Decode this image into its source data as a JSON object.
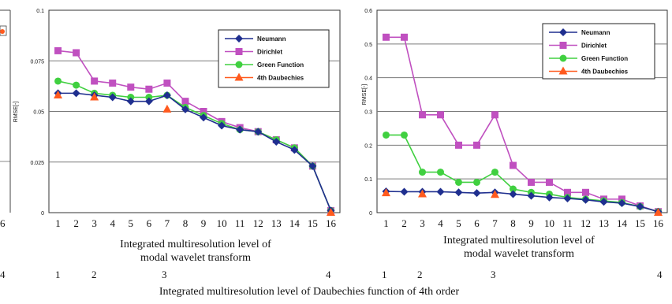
{
  "chart_data": [
    {
      "type": "line",
      "ylabel": "RMSE[-]",
      "ylim": [
        0,
        0.1
      ],
      "yticks": [
        "0",
        "0.025",
        "0.05",
        "0.075",
        "0.1"
      ],
      "xticks": [
        "1",
        "2",
        "3",
        "4",
        "5",
        "6",
        "7",
        "8",
        "9",
        "10",
        "11",
        "12",
        "13",
        "14",
        "15",
        "16"
      ],
      "xlabel_lines": [
        "Integrated multiresolution level of",
        "modal wavelet transform"
      ],
      "legend": "top-right",
      "grid": "horizontal",
      "series": [
        {
          "name": "Neumann",
          "color": "#1f2f8f",
          "marker": "diamond",
          "x": [
            1,
            2,
            3,
            4,
            5,
            6,
            7,
            8,
            9,
            10,
            11,
            12,
            13,
            14,
            15,
            16
          ],
          "y": [
            0.059,
            0.059,
            0.058,
            0.057,
            0.055,
            0.055,
            0.058,
            0.051,
            0.047,
            0.043,
            0.041,
            0.04,
            0.035,
            0.031,
            0.023,
            0.001
          ]
        },
        {
          "name": "Dirichlet",
          "color": "#c050c0",
          "marker": "square",
          "x": [
            1,
            2,
            3,
            4,
            5,
            6,
            7,
            8,
            9,
            10,
            11,
            12,
            13,
            14,
            15,
            16
          ],
          "y": [
            0.08,
            0.079,
            0.065,
            0.064,
            0.062,
            0.061,
            0.064,
            0.055,
            0.05,
            0.045,
            0.042,
            0.04,
            0.036,
            0.032,
            0.023,
            0.001
          ]
        },
        {
          "name": "Green Function",
          "color": "#40d040",
          "marker": "circle",
          "x": [
            1,
            2,
            3,
            4,
            5,
            6,
            7,
            8,
            9,
            10,
            11,
            12,
            13,
            14,
            15,
            16
          ],
          "y": [
            0.065,
            0.063,
            0.059,
            0.058,
            0.057,
            0.057,
            0.058,
            0.052,
            0.048,
            0.044,
            0.041,
            0.04,
            0.036,
            0.032,
            0.023,
            0.001
          ]
        },
        {
          "name": "4th Daubechies",
          "color": "#ff5a1e",
          "marker": "triangle",
          "x": [
            1,
            3,
            7,
            16
          ],
          "y": [
            0.058,
            0.057,
            0.051,
            0.0
          ]
        }
      ]
    },
    {
      "type": "line",
      "ylabel": "RMSE[-]",
      "ylim": [
        0,
        0.6
      ],
      "yticks": [
        "0",
        "0.1",
        "0.2",
        "0.3",
        "0.4",
        "0.5",
        "0.6"
      ],
      "xticks": [
        "1",
        "2",
        "3",
        "4",
        "5",
        "6",
        "7",
        "8",
        "9",
        "10",
        "11",
        "12",
        "13",
        "14",
        "15",
        "16"
      ],
      "xlabel_lines": [
        "Integrated multiresolution level of",
        "modal wavelet transform"
      ],
      "legend": "top-right",
      "grid": "horizontal",
      "series": [
        {
          "name": "Neumann",
          "color": "#1f2f8f",
          "marker": "diamond",
          "x": [
            1,
            2,
            3,
            4,
            5,
            6,
            7,
            8,
            9,
            10,
            11,
            12,
            13,
            14,
            15,
            16
          ],
          "y": [
            0.063,
            0.062,
            0.062,
            0.062,
            0.06,
            0.058,
            0.06,
            0.055,
            0.05,
            0.045,
            0.042,
            0.038,
            0.032,
            0.028,
            0.018,
            0.003
          ]
        },
        {
          "name": "Dirichlet",
          "color": "#c050c0",
          "marker": "square",
          "x": [
            1,
            2,
            3,
            4,
            5,
            6,
            7,
            8,
            9,
            10,
            11,
            12,
            13,
            14,
            15,
            16
          ],
          "y": [
            0.52,
            0.52,
            0.29,
            0.29,
            0.2,
            0.2,
            0.29,
            0.14,
            0.09,
            0.09,
            0.06,
            0.06,
            0.04,
            0.04,
            0.02,
            0.003
          ]
        },
        {
          "name": "Green Function",
          "color": "#40d040",
          "marker": "circle",
          "x": [
            1,
            2,
            3,
            4,
            5,
            6,
            7,
            8,
            9,
            10,
            11,
            12,
            13,
            14,
            15,
            16
          ],
          "y": [
            0.23,
            0.23,
            0.12,
            0.12,
            0.09,
            0.09,
            0.12,
            0.07,
            0.06,
            0.055,
            0.045,
            0.04,
            0.035,
            0.03,
            0.018,
            0.003
          ]
        },
        {
          "name": "4th Daubechies",
          "color": "#ff5a1e",
          "marker": "triangle",
          "x": [
            1,
            3,
            7,
            16
          ],
          "y": [
            0.058,
            0.055,
            0.053,
            0.0
          ]
        }
      ]
    }
  ],
  "bottom": {
    "level_numbers": [
      "1",
      "2",
      "3",
      "4"
    ],
    "partial_left_tick": "6",
    "partial_left_bottom": "4",
    "caption": "Integrated multiresolution level of Daubechies function of 4th order"
  },
  "left_fragment": {
    "legend_marker_color": "#ff5a1e"
  }
}
